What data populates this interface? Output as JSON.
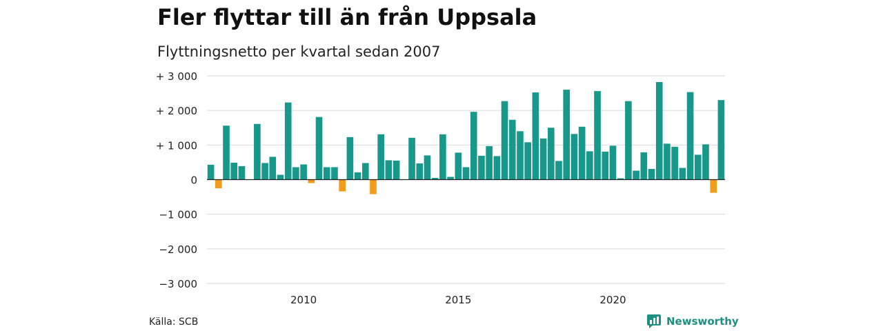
{
  "header": {
    "title": "Fler flyttar till än från Uppsala",
    "subtitle": "Flyttningsnetto per kvartal sedan 2007"
  },
  "footer": {
    "source": "Källa: SCB",
    "brand": "Newsworthy"
  },
  "colors": {
    "positive": "#17988a",
    "negative": "#f29d1a",
    "grid": "#dddddd",
    "axis": "#222222",
    "brand": "#1b8f80"
  },
  "chart_data": {
    "type": "bar",
    "title": "Fler flyttar till än från Uppsala",
    "subtitle": "Flyttningsnetto per kvartal sedan 2007",
    "categories": [
      "2007 Q2",
      "2007 Q3",
      "2007 Q4",
      "2008 Q1",
      "2008 Q2",
      "2008 Q3",
      "2008 Q4",
      "2009 Q1",
      "2009 Q2",
      "2009 Q3",
      "2009 Q4",
      "2010 Q1",
      "2010 Q2",
      "2010 Q3",
      "2010 Q4",
      "2011 Q1",
      "2011 Q2",
      "2011 Q3",
      "2011 Q4",
      "2012 Q1",
      "2012 Q2",
      "2012 Q3",
      "2012 Q4",
      "2013 Q1",
      "2013 Q2",
      "2013 Q3",
      "2013 Q4",
      "2014 Q1",
      "2014 Q2",
      "2014 Q3",
      "2014 Q4",
      "2015 Q1",
      "2015 Q2",
      "2015 Q3",
      "2015 Q4",
      "2016 Q1",
      "2016 Q2",
      "2016 Q3",
      "2016 Q4",
      "2017 Q1",
      "2017 Q2",
      "2017 Q3",
      "2017 Q4",
      "2018 Q1",
      "2018 Q2",
      "2018 Q3",
      "2018 Q4",
      "2019 Q1",
      "2019 Q2",
      "2019 Q3",
      "2019 Q4",
      "2020 Q1",
      "2020 Q2",
      "2020 Q3",
      "2020 Q4",
      "2021 Q1",
      "2021 Q2",
      "2021 Q3",
      "2021 Q4",
      "2022 Q1",
      "2022 Q2",
      "2022 Q3",
      "2022 Q4",
      "2023 Q1",
      "2023 Q2",
      "2023 Q3",
      "2023 Q4"
    ],
    "values": [
      430,
      -250,
      1560,
      490,
      390,
      0,
      1610,
      480,
      660,
      140,
      2230,
      360,
      440,
      -100,
      1810,
      360,
      360,
      -340,
      1230,
      210,
      480,
      -420,
      1310,
      560,
      550,
      0,
      1210,
      470,
      700,
      50,
      1310,
      80,
      780,
      360,
      1960,
      690,
      970,
      680,
      2270,
      1730,
      1400,
      1080,
      2520,
      1190,
      1500,
      540,
      2600,
      1320,
      1530,
      820,
      2560,
      810,
      980,
      40,
      2270,
      260,
      790,
      310,
      2820,
      1040,
      950,
      340,
      2530,
      720,
      1020,
      -380,
      2300
    ],
    "y_ticks": [
      3000,
      2000,
      1000,
      0,
      -1000,
      -2000,
      -3000
    ],
    "y_tick_labels": [
      "+ 3 000",
      "+ 2 000",
      "+ 1 000",
      "0",
      "−1 000",
      "−2 000",
      "−3 000"
    ],
    "x_ticks": [
      {
        "label": "2010",
        "category": "2010 Q2"
      },
      {
        "label": "2015",
        "category": "2015 Q2"
      },
      {
        "label": "2020",
        "category": "2020 Q2"
      }
    ],
    "ylim": [
      -3000,
      3000
    ],
    "grid": true,
    "legend": "none"
  }
}
